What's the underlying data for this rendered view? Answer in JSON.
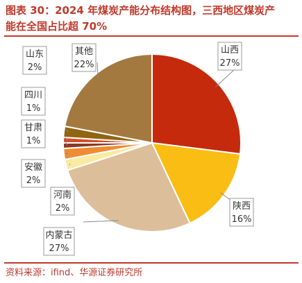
{
  "title_line1": "图表 30：2024 年煤炭产能分布结构图，三西地区煤炭产",
  "title_line2": "能在全国占比超 70%",
  "source": "资料来源：ifind、华源证券研究所",
  "chart_data": {
    "type": "pie",
    "title": "图表 30：2024 年煤炭产能分布结构图，三西地区煤炭产能在全国占比超 70%",
    "slices": [
      {
        "label": "山西",
        "value": 27,
        "pct": "27%",
        "color": "#c52a0c"
      },
      {
        "label": "陕西",
        "value": 16,
        "pct": "16%",
        "color": "#f9bd14"
      },
      {
        "label": "内蒙古",
        "value": 27,
        "pct": "27%",
        "color": "#dcbf9a"
      },
      {
        "label": "河南",
        "value": 2,
        "pct": "2%",
        "color": "#faeaa2"
      },
      {
        "label": "安徽",
        "value": 2,
        "pct": "2%",
        "color": "#ef8c33"
      },
      {
        "label": "甘肃",
        "value": 1,
        "pct": "1%",
        "color": "#8a3a22"
      },
      {
        "label": "四川",
        "value": 1,
        "pct": "1%",
        "color": "#d34e2a"
      },
      {
        "label": "山东",
        "value": 2,
        "pct": "2%",
        "color": "#8f6512"
      },
      {
        "label": "其他",
        "value": 22,
        "pct": "22%",
        "color": "#a4793f"
      }
    ]
  }
}
